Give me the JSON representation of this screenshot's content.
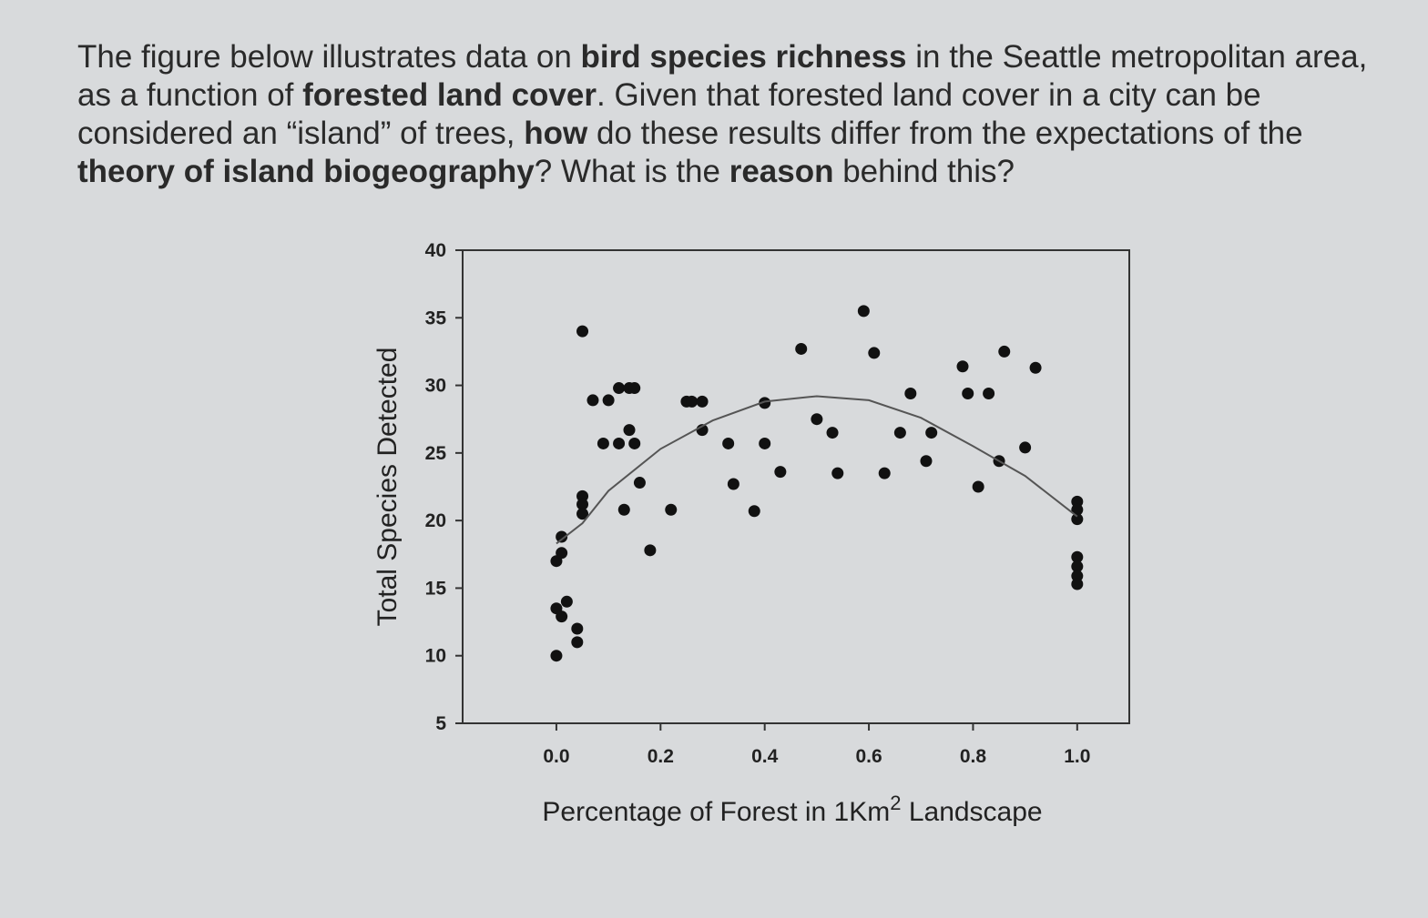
{
  "question": {
    "segments": [
      {
        "text": "The figure below illustrates data on ",
        "bold": false
      },
      {
        "text": "bird species richness",
        "bold": true
      },
      {
        "text": " in the Seattle metropolitan area, as a function of ",
        "bold": false
      },
      {
        "text": "forested land cover",
        "bold": true
      },
      {
        "text": ".  Given that forested land cover in a city can be considered an “island” of trees, ",
        "bold": false
      },
      {
        "text": "how",
        "bold": true
      },
      {
        "text": " do these results differ from the expectations of the ",
        "bold": false
      },
      {
        "text": "theory of island biogeography",
        "bold": true
      },
      {
        "text": "?  What is the ",
        "bold": false
      },
      {
        "text": "reason",
        "bold": true
      },
      {
        "text": " behind this?",
        "bold": false
      }
    ]
  },
  "chart_data": {
    "type": "scatter",
    "xlabel": [
      "Percentage of Forest in 1Km",
      "2",
      " Landscape"
    ],
    "ylabel": "Total Species Detected",
    "xlim": [
      -0.18,
      1.1
    ],
    "ylim": [
      5,
      40
    ],
    "xticks": [
      {
        "value": 0,
        "label": "0.0"
      },
      {
        "value": 0.2,
        "label": "0.2"
      },
      {
        "value": 0.4,
        "label": "0.4"
      },
      {
        "value": 0.6,
        "label": "0.6"
      },
      {
        "value": 0.8,
        "label": "0.8"
      },
      {
        "value": 1,
        "label": "1.0"
      }
    ],
    "yticks": [
      5,
      10,
      15,
      20,
      25,
      30,
      35,
      40
    ],
    "series": [
      {
        "type": "scatter",
        "color": "#111111",
        "x": [
          0,
          0,
          0,
          0.01,
          0.01,
          0.02,
          0.01,
          0.04,
          0.04,
          0.05,
          0.05,
          0.05,
          0.05,
          0.07,
          0.1,
          0.12,
          0.14,
          0.15,
          0.09,
          0.12,
          0.14,
          0.15,
          0.13,
          0.16,
          0.18,
          0.22,
          0.25,
          0.26,
          0.28,
          0.28,
          0.33,
          0.34,
          0.38,
          0.4,
          0.4,
          0.43,
          0.47,
          0.5,
          0.53,
          0.54,
          0.59,
          0.61,
          0.63,
          0.66,
          0.68,
          0.71,
          0.72,
          0.78,
          0.79,
          0.83,
          0.81,
          0.85,
          0.86,
          0.9,
          0.92,
          1,
          1,
          1,
          1,
          1,
          1,
          1
        ],
        "values": [
          10,
          13.5,
          17,
          17.6,
          18.8,
          14,
          12.9,
          12,
          11,
          34,
          21.8,
          21.2,
          20.5,
          28.9,
          28.9,
          29.8,
          29.8,
          29.8,
          25.7,
          25.7,
          26.7,
          25.7,
          20.8,
          22.8,
          17.8,
          20.8,
          28.8,
          28.8,
          28.8,
          26.7,
          25.7,
          22.7,
          20.7,
          25.7,
          28.7,
          23.6,
          32.7,
          27.5,
          26.5,
          23.5,
          35.5,
          32.4,
          23.5,
          26.5,
          29.4,
          24.4,
          26.5,
          31.4,
          29.4,
          29.4,
          22.5,
          24.4,
          32.5,
          25.4,
          31.3,
          21.4,
          20.8,
          20.1,
          17.3,
          16.6,
          15.9,
          15.3
        ]
      },
      {
        "type": "line",
        "color": "#555555",
        "x": [
          0,
          0.05,
          0.1,
          0.2,
          0.3,
          0.4,
          0.5,
          0.6,
          0.7,
          0.8,
          0.9,
          1
        ],
        "values": [
          18.3,
          19.8,
          22.2,
          25.3,
          27.4,
          28.8,
          29.2,
          28.9,
          27.6,
          25.5,
          23.3,
          20.3
        ]
      }
    ]
  }
}
